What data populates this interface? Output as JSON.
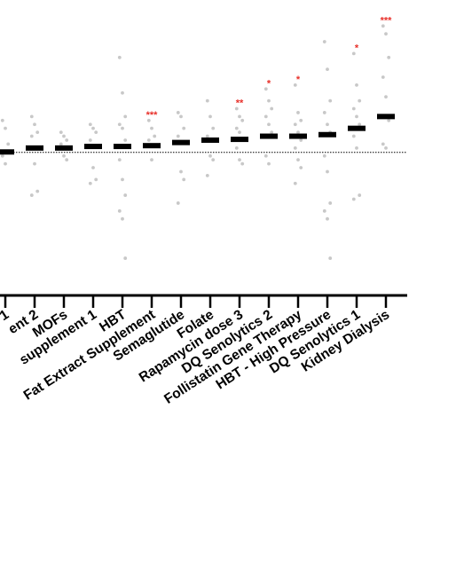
{
  "chart_data": {
    "type": "scatter",
    "style": "dot plot with median bars; categories cut off at left edge",
    "baseline_reference": "dotted horizontal line",
    "colors": {
      "points": "#c8c8c8",
      "median": "#000000",
      "significance": "#e8302a",
      "axis": "#000000"
    },
    "categories": [
      {
        "label": "1",
        "median": 0.0,
        "points": [
          0.4,
          0.3,
          0.1,
          -0.05,
          -0.15
        ],
        "sig": ""
      },
      {
        "label": "ent 2",
        "median": 0.05,
        "points": [
          0.45,
          0.35,
          0.25,
          0.2,
          -0.15,
          -0.5,
          -0.55
        ],
        "sig": ""
      },
      {
        "label": "MOFs",
        "median": 0.05,
        "points": [
          0.25,
          0.2,
          0.15,
          0.1,
          -0.05,
          -0.1
        ],
        "sig": ""
      },
      {
        "label": "supplement 1",
        "median": 0.07,
        "points": [
          0.35,
          0.3,
          0.25,
          0.15,
          -0.2,
          -0.35,
          -0.4
        ],
        "sig": ""
      },
      {
        "label": "HBT",
        "median": 0.07,
        "points": [
          1.2,
          0.75,
          0.45,
          0.35,
          0.3,
          0.15,
          -0.1,
          -0.35,
          -0.55,
          -0.75,
          -0.85,
          -1.35
        ],
        "sig": ""
      },
      {
        "label": "Fat Extract Supplement",
        "median": 0.08,
        "points": [
          0.4,
          0.3,
          0.2,
          0.15,
          -0.1
        ],
        "sig": "***"
      },
      {
        "label": "Semaglutide",
        "median": 0.12,
        "points": [
          0.5,
          0.45,
          0.3,
          0.2,
          -0.25,
          -0.35,
          -0.65
        ],
        "sig": ""
      },
      {
        "label": "Folate",
        "median": 0.15,
        "points": [
          0.65,
          0.45,
          0.3,
          0.2,
          -0.05,
          -0.1,
          -0.3
        ],
        "sig": ""
      },
      {
        "label": "Rapamycin dose 3",
        "median": 0.16,
        "points": [
          0.55,
          0.45,
          0.4,
          0.3,
          0.25,
          0.15,
          0.05,
          -0.1,
          -0.15
        ],
        "sig": "**"
      },
      {
        "label": "DQ Senolytics 2",
        "median": 0.2,
        "points": [
          0.8,
          0.65,
          0.55,
          0.45,
          0.35,
          0.25,
          -0.05,
          -0.15
        ],
        "sig": "*"
      },
      {
        "label": "Follistatin Gene Therapy",
        "median": 0.2,
        "points": [
          0.85,
          0.5,
          0.4,
          0.35,
          0.25,
          0.15,
          0.05,
          -0.1,
          -0.2,
          -0.4
        ],
        "sig": "*"
      },
      {
        "label": "HBT - High Pressure",
        "median": 0.22,
        "points": [
          1.4,
          1.05,
          0.65,
          0.5,
          0.35,
          0.25,
          -0.05,
          -0.25,
          -0.65,
          -0.75,
          -0.85,
          -1.35
        ],
        "sig": ""
      },
      {
        "label": "DQ Senolytics 1",
        "median": 0.3,
        "points": [
          1.25,
          0.85,
          0.65,
          0.55,
          0.45,
          0.35,
          0.2,
          0.05,
          -0.55,
          -0.6
        ],
        "sig": "*"
      },
      {
        "label": "Kidney Dialysis",
        "median": 0.45,
        "points": [
          1.6,
          1.5,
          1.2,
          0.95,
          0.7,
          0.4,
          0.1,
          0.05
        ],
        "sig": "***"
      }
    ],
    "ylim": [
      -1.8,
      1.75
    ],
    "baseline_y": 0.0,
    "xlabel": "",
    "ylabel": "",
    "grid": false,
    "legend": "none"
  }
}
